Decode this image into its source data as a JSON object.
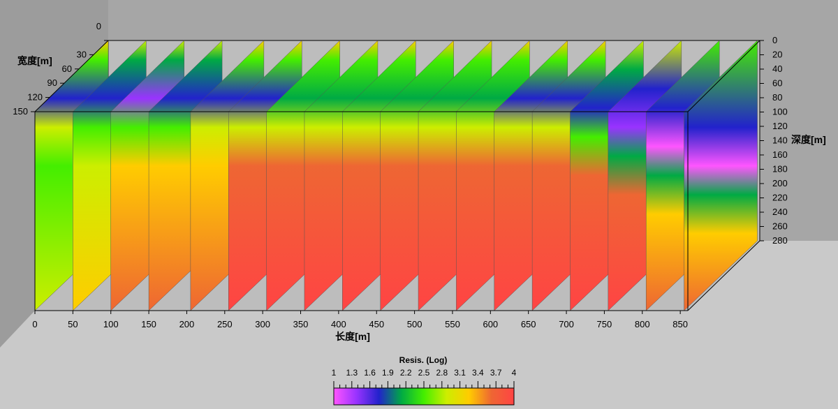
{
  "chart_data": {
    "type": "heatmap",
    "subtype": "3d-fence-slices",
    "length_axis": {
      "label": "长度[m]",
      "ticks": [
        0,
        50,
        100,
        150,
        200,
        250,
        300,
        350,
        400,
        450,
        500,
        550,
        600,
        650,
        700,
        750,
        800,
        850
      ],
      "range": [
        0,
        860
      ]
    },
    "width_axis": {
      "label": "宽度[m]",
      "ticks": [
        0,
        30,
        60,
        90,
        120,
        150
      ],
      "range": [
        0,
        150
      ]
    },
    "depth_axis": {
      "label": "深度[m]",
      "ticks": [
        0,
        20,
        40,
        60,
        80,
        100,
        120,
        140,
        160,
        180,
        200,
        220,
        240,
        260,
        280
      ],
      "range": [
        0,
        280
      ]
    },
    "slices_x": [
      0,
      50,
      100,
      150,
      205,
      255,
      305,
      355,
      405,
      455,
      505,
      555,
      605,
      655,
      705,
      755,
      805,
      855
    ],
    "slice_patterns": {
      "conductor_top": [
        1.9,
        1.6,
        1.5,
        1.6,
        1.8,
        1.9,
        2.0,
        2.0,
        2.0,
        2.0,
        2.0,
        2.0,
        1.9,
        1.9,
        1.6,
        1.3,
        1.1,
        1.1
      ],
      "conductor_depth": [
        60,
        60,
        60,
        60,
        60,
        60,
        60,
        60,
        60,
        60,
        60,
        60,
        60,
        60,
        70,
        90,
        110,
        130
      ],
      "deep_resistivity": [
        3.0,
        3.3,
        3.5,
        3.7,
        3.8,
        3.9,
        4.0,
        4.0,
        4.0,
        4.0,
        4.0,
        4.0,
        4.0,
        4.0,
        4.0,
        3.9,
        3.8,
        3.7
      ]
    },
    "colorbar": {
      "title": "Resis. (Log)",
      "ticks": [
        "1",
        "1.3",
        "1.6",
        "1.9",
        "2.2",
        "2.5",
        "2.8",
        "3.1",
        "3.4",
        "3.7",
        "4"
      ],
      "range": [
        1,
        4
      ],
      "colors": [
        "#ff55ff",
        "#9933ff",
        "#2222cc",
        "#00aa44",
        "#44ee00",
        "#ccee00",
        "#ffcc00",
        "#ee6633",
        "#ff4444"
      ]
    }
  }
}
